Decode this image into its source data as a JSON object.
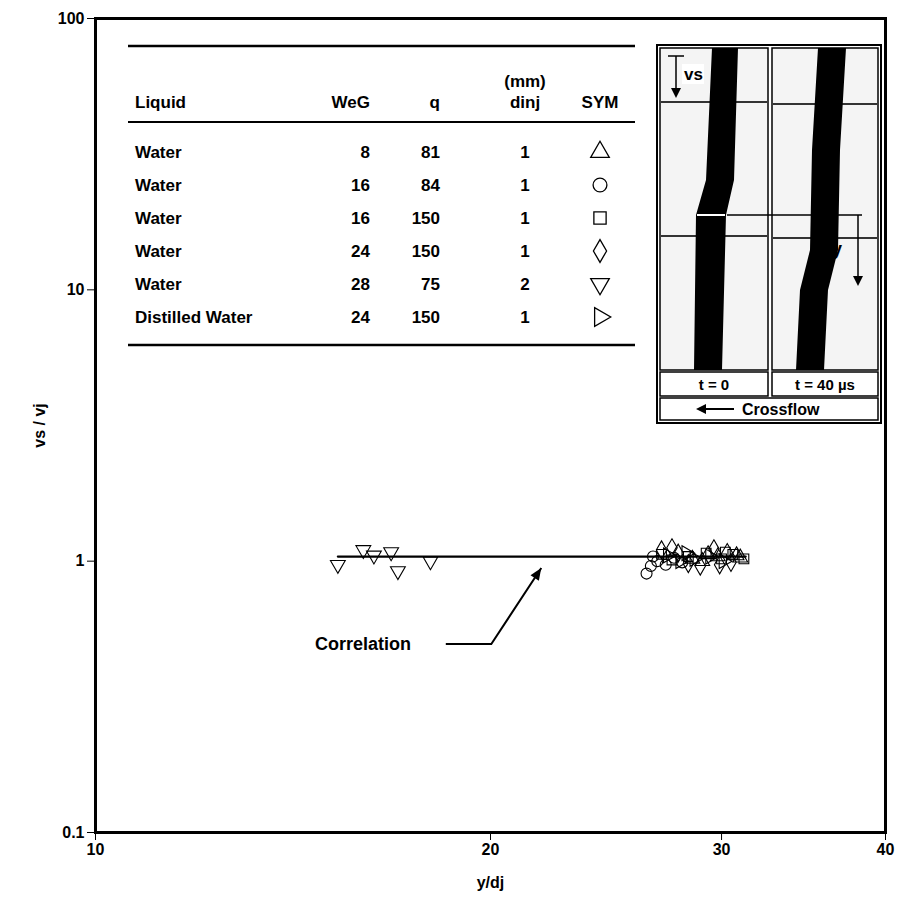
{
  "chart_data": {
    "type": "scatter",
    "xlabel": "y/dj",
    "ylabel": "vs / vj",
    "log": true,
    "grid": false,
    "xlim": [
      10,
      40
    ],
    "ylim": [
      0.1,
      100
    ],
    "xticks": [
      10,
      20,
      30,
      40
    ],
    "yticks": [
      0.1,
      1,
      10,
      100
    ],
    "legend": "top-left",
    "legend_headers": [
      "Liquid",
      "WeG",
      "q",
      "(mm) dinj",
      "SYM"
    ],
    "series": [
      {
        "name": "Water",
        "We_G": 8,
        "q": 81,
        "d_inj": 1,
        "marker": "triangle",
        "color": "#000000",
        "x": [
          28.5,
          29.0,
          29.3,
          29.8,
          30.3,
          30.8,
          31.0
        ],
        "values": [
          1.02,
          1.0,
          1.06,
          1.04,
          1.08,
          1.05,
          1.03
        ]
      },
      {
        "name": "Water",
        "We_G": 16,
        "q": 84,
        "d_inj": 1,
        "marker": "circle",
        "color": "#000000",
        "x": [
          26.3,
          26.5,
          26.6,
          26.8,
          27.2,
          27.6,
          28.0
        ],
        "values": [
          0.9,
          0.96,
          1.04,
          1.0,
          0.97,
          1.03,
          0.99
        ]
      },
      {
        "name": "Water",
        "We_G": 16,
        "q": 150,
        "d_inj": 1,
        "marker": "square",
        "color": "#000000",
        "x": [
          27.0,
          27.5,
          28.3,
          29.2,
          30.0,
          30.2,
          30.6,
          31.2
        ],
        "values": [
          1.06,
          1.01,
          1.04,
          1.07,
          1.02,
          1.08,
          1.06,
          1.02
        ]
      },
      {
        "name": "Water",
        "We_G": 24,
        "q": 150,
        "d_inj": 1,
        "marker": "diamond",
        "color": "#000000",
        "x": [
          27.0,
          27.5,
          27.8,
          28.3,
          28.9,
          29.6,
          29.9,
          30.5
        ],
        "values": [
          1.1,
          1.12,
          1.07,
          0.98,
          0.96,
          1.11,
          0.97,
          0.99
        ]
      },
      {
        "name": "Water",
        "We_G": 28,
        "q": 75,
        "d_inj": 2,
        "marker": "triangle-down",
        "color": "#000000",
        "x": [
          15.3,
          16.0,
          16.3,
          16.8,
          17.0,
          18.0
        ],
        "values": [
          0.97,
          1.1,
          1.05,
          1.08,
          0.92,
          1.0
        ]
      },
      {
        "name": "Distilled Water",
        "We_G": 24,
        "q": 150,
        "d_inj": 1,
        "marker": "triangle-right",
        "color": "#000000",
        "x": [
          27.3,
          27.9,
          28.2,
          28.6,
          29.4,
          30.1
        ],
        "values": [
          1.05,
          1.0,
          1.07,
          1.02,
          1.04,
          1.0
        ]
      },
      {
        "type": "line",
        "color": "#000000",
        "x": [
          15.3,
          31.3
        ],
        "values": [
          1.04,
          1.04
        ]
      }
    ],
    "annotations": [
      {
        "text": "Correlation"
      }
    ],
    "inset": {
      "velocity_label": "vs",
      "distance_label": "y",
      "panel_labels": [
        "t = 0",
        "t = 40 µs"
      ],
      "direction_label": "Crossflow"
    }
  }
}
